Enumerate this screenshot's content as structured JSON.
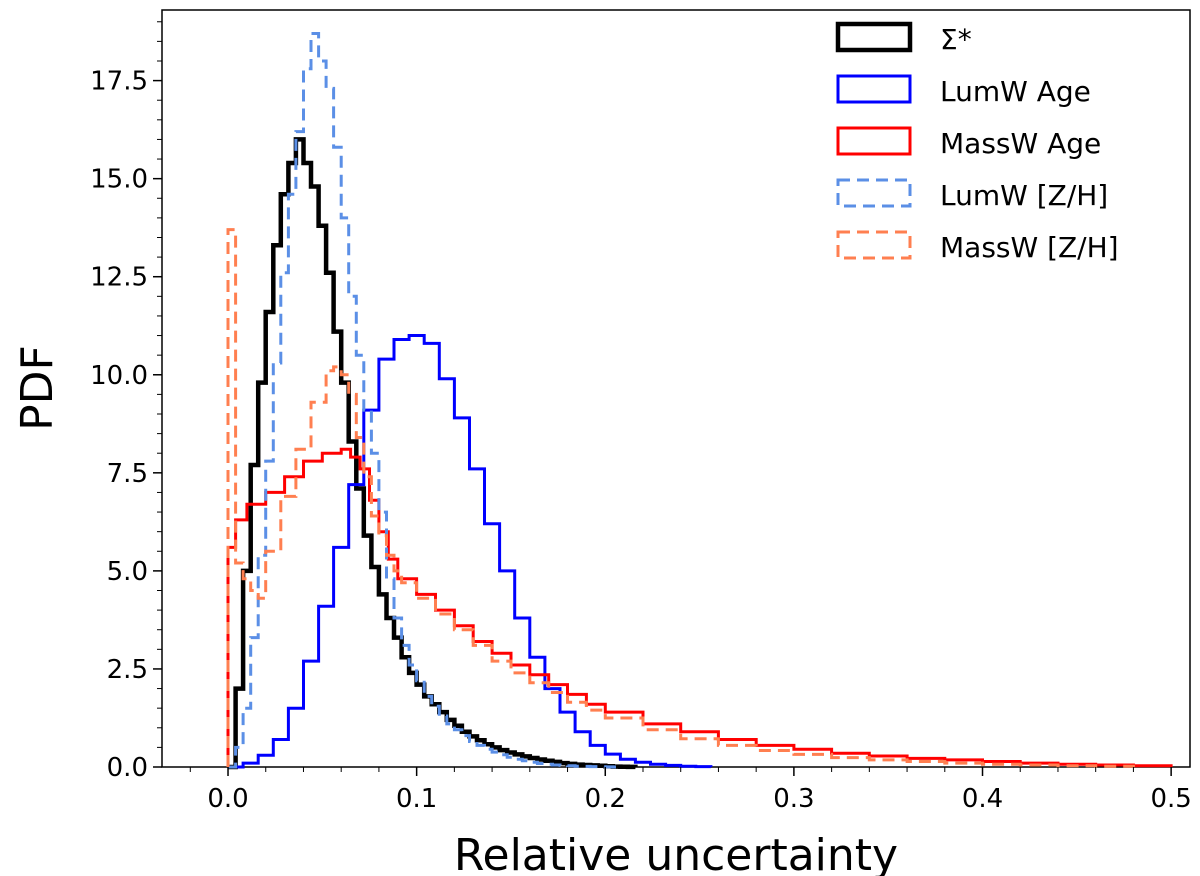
{
  "chart_data": {
    "type": "step-histogram",
    "title": "",
    "xlabel": "Relative uncertainty",
    "ylabel": "PDF",
    "xlim": [
      -0.035,
      0.51
    ],
    "ylim": [
      0,
      19.3
    ],
    "xticks": [
      0.0,
      0.1,
      0.2,
      0.3,
      0.4,
      0.5
    ],
    "xtick_labels": [
      "0.0",
      "0.1",
      "0.2",
      "0.3",
      "0.4",
      "0.5"
    ],
    "yticks": [
      0.0,
      2.5,
      5.0,
      7.5,
      10.0,
      12.5,
      15.0,
      17.5
    ],
    "ytick_labels": [
      "0.0",
      "2.5",
      "5.0",
      "7.5",
      "10.0",
      "12.5",
      "15.0",
      "17.5"
    ],
    "legend_position": "top-right",
    "series": [
      {
        "name": "Σ*",
        "color": "#000000",
        "style": "solid",
        "width": 4.5,
        "x": [
          0.0,
          0.004,
          0.008,
          0.012,
          0.016,
          0.02,
          0.024,
          0.028,
          0.032,
          0.036,
          0.04,
          0.044,
          0.048,
          0.052,
          0.056,
          0.06,
          0.064,
          0.068,
          0.072,
          0.076,
          0.08,
          0.084,
          0.088,
          0.092,
          0.096,
          0.1,
          0.104,
          0.108,
          0.112,
          0.116,
          0.12,
          0.124,
          0.128,
          0.132,
          0.136,
          0.14,
          0.144,
          0.148,
          0.152,
          0.156,
          0.16,
          0.164,
          0.168,
          0.172,
          0.176,
          0.18,
          0.184,
          0.188,
          0.192,
          0.196,
          0.2,
          0.204,
          0.208,
          0.212,
          0.216
        ],
        "y": [
          0.0,
          2.0,
          5.0,
          7.7,
          9.8,
          11.6,
          13.3,
          14.6,
          15.4,
          16.0,
          15.4,
          14.8,
          13.8,
          12.6,
          11.1,
          9.8,
          8.3,
          7.1,
          5.9,
          5.1,
          4.4,
          3.8,
          3.3,
          2.8,
          2.4,
          2.1,
          1.8,
          1.6,
          1.4,
          1.2,
          1.05,
          0.9,
          0.78,
          0.68,
          0.58,
          0.5,
          0.43,
          0.37,
          0.32,
          0.27,
          0.23,
          0.19,
          0.16,
          0.13,
          0.1,
          0.08,
          0.06,
          0.05,
          0.04,
          0.03,
          0.02,
          0.01,
          0.005,
          0.002,
          0.0
        ]
      },
      {
        "name": "LumW Age",
        "color": "#0000ff",
        "style": "solid",
        "width": 3,
        "x": [
          0.0,
          0.008,
          0.016,
          0.024,
          0.032,
          0.04,
          0.048,
          0.056,
          0.064,
          0.072,
          0.08,
          0.088,
          0.096,
          0.104,
          0.112,
          0.12,
          0.128,
          0.136,
          0.144,
          0.152,
          0.16,
          0.168,
          0.176,
          0.184,
          0.192,
          0.2,
          0.208,
          0.216,
          0.224,
          0.232,
          0.24,
          0.248,
          0.256
        ],
        "y": [
          0.0,
          0.1,
          0.3,
          0.7,
          1.5,
          2.7,
          4.1,
          5.6,
          7.2,
          9.1,
          10.4,
          10.9,
          11.0,
          10.8,
          9.9,
          8.9,
          7.6,
          6.2,
          5.0,
          3.8,
          2.8,
          2.0,
          1.4,
          0.9,
          0.55,
          0.33,
          0.2,
          0.12,
          0.07,
          0.04,
          0.02,
          0.01,
          0.0
        ]
      },
      {
        "name": "MassW Age",
        "color": "#ff0000",
        "style": "solid",
        "width": 3,
        "x": [
          0.0,
          0.004,
          0.01,
          0.02,
          0.03,
          0.04,
          0.05,
          0.06,
          0.065,
          0.07,
          0.075,
          0.08,
          0.085,
          0.09,
          0.1,
          0.11,
          0.12,
          0.13,
          0.14,
          0.15,
          0.16,
          0.17,
          0.18,
          0.19,
          0.2,
          0.22,
          0.24,
          0.26,
          0.28,
          0.3,
          0.32,
          0.34,
          0.36,
          0.38,
          0.4,
          0.42,
          0.44,
          0.46,
          0.48,
          0.5
        ],
        "y": [
          5.6,
          6.3,
          6.7,
          7.0,
          7.4,
          7.8,
          8.0,
          8.1,
          7.9,
          7.6,
          6.8,
          6.0,
          5.3,
          4.8,
          4.4,
          4.0,
          3.6,
          3.2,
          2.9,
          2.6,
          2.35,
          2.1,
          1.85,
          1.6,
          1.4,
          1.1,
          0.9,
          0.7,
          0.55,
          0.45,
          0.35,
          0.28,
          0.22,
          0.18,
          0.14,
          0.1,
          0.07,
          0.05,
          0.03,
          0.0
        ]
      },
      {
        "name": "LumW [Z/H]",
        "color": "#5b8fe6",
        "style": "dashed",
        "width": 3,
        "x": [
          0.0,
          0.004,
          0.008,
          0.012,
          0.016,
          0.02,
          0.024,
          0.028,
          0.032,
          0.036,
          0.04,
          0.044,
          0.048,
          0.052,
          0.056,
          0.06,
          0.064,
          0.068,
          0.072,
          0.076,
          0.08,
          0.084,
          0.088,
          0.092,
          0.096,
          0.1,
          0.104,
          0.108,
          0.112,
          0.116,
          0.12,
          0.124,
          0.128,
          0.132,
          0.136,
          0.14,
          0.144,
          0.148,
          0.152,
          0.156,
          0.16,
          0.164,
          0.168,
          0.172,
          0.176,
          0.18,
          0.184,
          0.188,
          0.192,
          0.196,
          0.2,
          0.204,
          0.208
        ],
        "y": [
          0.0,
          0.5,
          1.5,
          3.3,
          5.4,
          7.8,
          10.3,
          12.6,
          14.6,
          16.2,
          17.8,
          18.7,
          18.0,
          17.3,
          15.8,
          14.0,
          12.0,
          10.5,
          9.1,
          8.0,
          6.5,
          4.8,
          3.8,
          3.1,
          2.6,
          2.2,
          1.8,
          1.55,
          1.3,
          1.1,
          0.95,
          0.8,
          0.65,
          0.55,
          0.45,
          0.38,
          0.31,
          0.25,
          0.2,
          0.16,
          0.12,
          0.09,
          0.07,
          0.05,
          0.04,
          0.03,
          0.02,
          0.015,
          0.01,
          0.005,
          0.003,
          0.001,
          0.0
        ]
      },
      {
        "name": "MassW [Z/H]",
        "color": "#ff7f50",
        "style": "dashed",
        "width": 3,
        "x": [
          0.0,
          0.004,
          0.008,
          0.012,
          0.016,
          0.02,
          0.028,
          0.036,
          0.044,
          0.052,
          0.056,
          0.06,
          0.064,
          0.068,
          0.072,
          0.076,
          0.08,
          0.084,
          0.088,
          0.092,
          0.1,
          0.11,
          0.12,
          0.13,
          0.14,
          0.15,
          0.16,
          0.17,
          0.18,
          0.19,
          0.2,
          0.22,
          0.24,
          0.26,
          0.28,
          0.3,
          0.32,
          0.34,
          0.36,
          0.38,
          0.4,
          0.42,
          0.44,
          0.46,
          0.48
        ],
        "y": [
          13.7,
          5.2,
          4.8,
          4.5,
          4.3,
          5.5,
          6.9,
          8.1,
          9.3,
          10.1,
          10.2,
          10.0,
          9.5,
          8.4,
          7.4,
          6.4,
          5.9,
          5.4,
          5.0,
          4.7,
          4.3,
          3.9,
          3.5,
          3.1,
          2.7,
          2.4,
          2.15,
          1.9,
          1.65,
          1.45,
          1.25,
          0.95,
          0.72,
          0.55,
          0.42,
          0.32,
          0.24,
          0.18,
          0.14,
          0.1,
          0.07,
          0.05,
          0.03,
          0.02,
          0.0
        ]
      }
    ]
  }
}
